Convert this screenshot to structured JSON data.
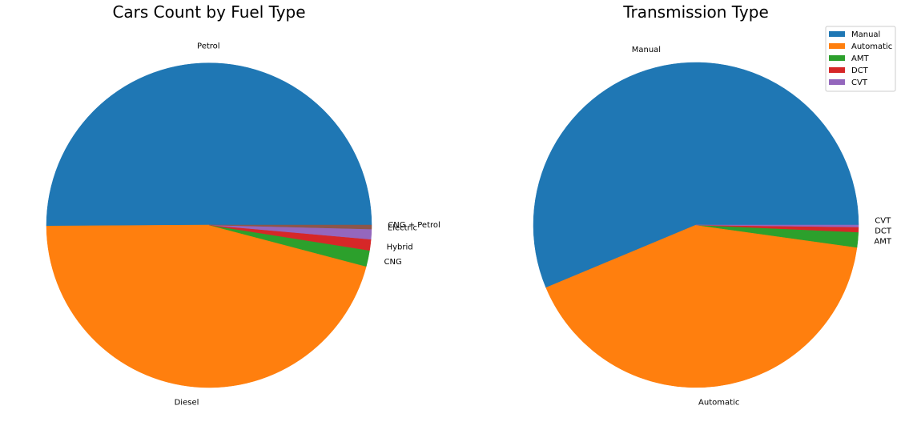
{
  "chart_data": [
    {
      "type": "pie",
      "title": "Cars Count by Fuel Type",
      "categories": [
        "Petrol",
        "Diesel",
        "CNG",
        "Hybrid",
        "Electric",
        "CNG + Petrol"
      ],
      "values": [
        50.1,
        45.8,
        1.6,
        1.1,
        1.0,
        0.4
      ],
      "colors": [
        "#1f77b4",
        "#ff7f0e",
        "#2ca02c",
        "#d62728",
        "#9467bd",
        "#8c564b"
      ],
      "start_angle": 0,
      "direction": "counterclockwise",
      "legend": "none"
    },
    {
      "type": "pie",
      "title": "Transmission Type",
      "categories": [
        "Manual",
        "Automatic",
        "AMT",
        "DCT",
        "CVT"
      ],
      "values": [
        56.3,
        41.5,
        1.5,
        0.5,
        0.2
      ],
      "colors": [
        "#1f77b4",
        "#ff7f0e",
        "#2ca02c",
        "#d62728",
        "#9467bd"
      ],
      "start_angle": 0,
      "direction": "counterclockwise",
      "legend": "top-right"
    }
  ]
}
